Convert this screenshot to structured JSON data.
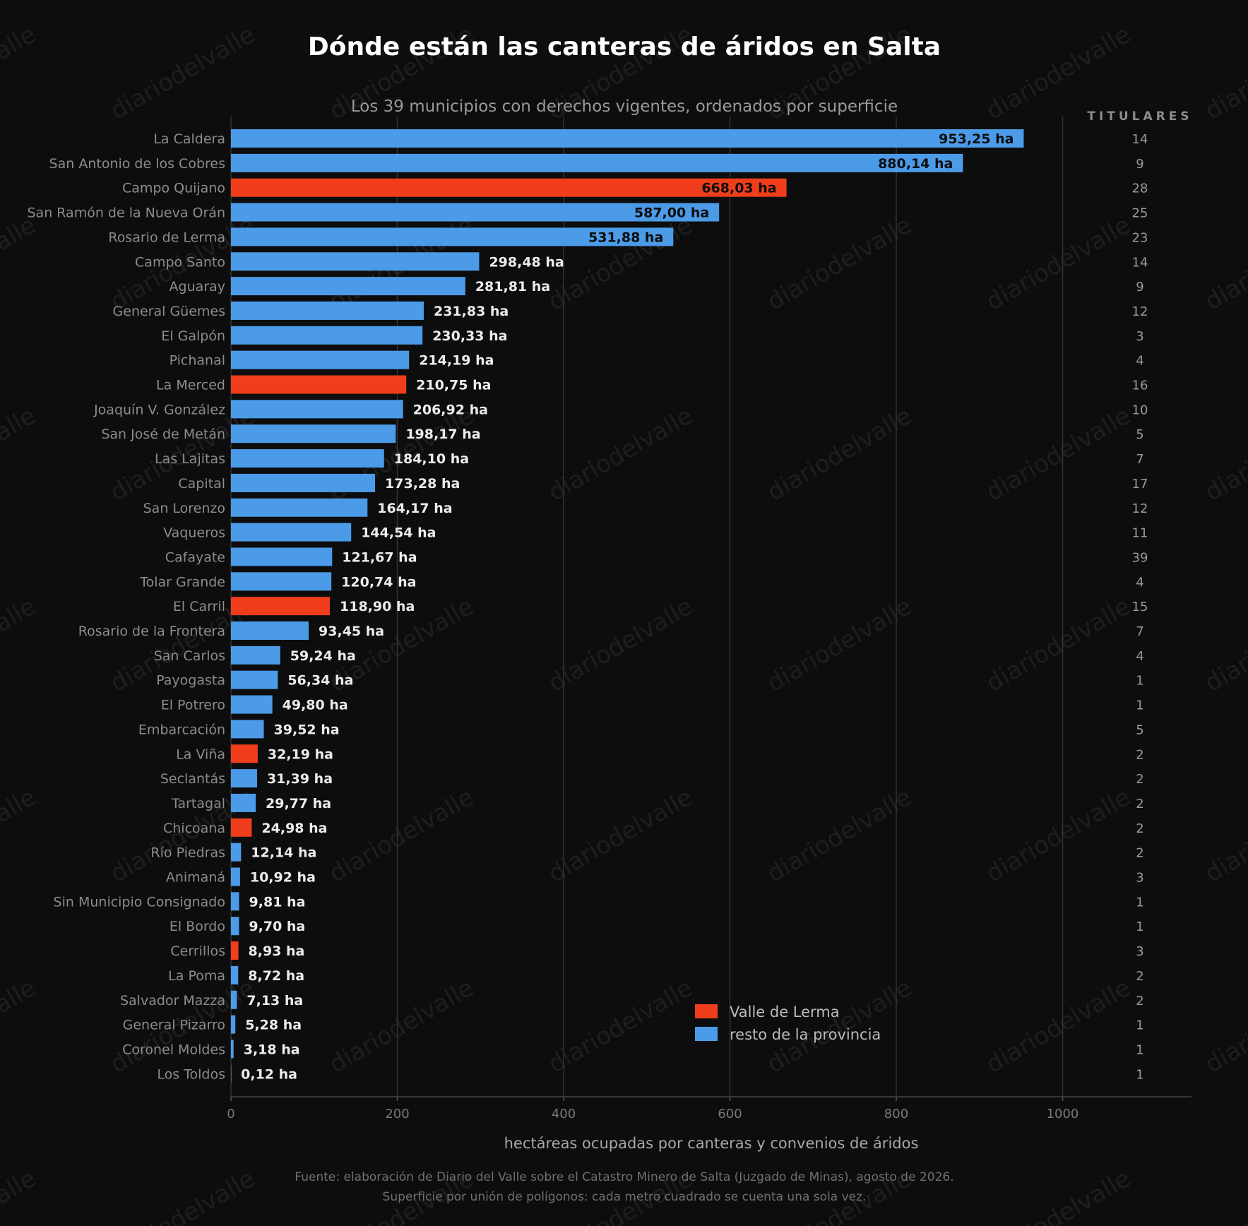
{
  "chart_data": {
    "type": "bar",
    "orientation": "horizontal",
    "title": "Dónde están las canteras de áridos en Salta",
    "subtitle": "Los 39 municipios con derechos vigentes, ordenados por superficie",
    "xlabel": "hectáreas ocupadas por canteras y convenios de áridos",
    "xlim": [
      0,
      1155
    ],
    "xticks": [
      0,
      200,
      400,
      600,
      800,
      1000
    ],
    "grid": true,
    "value_suffix": " ha",
    "right_column_header": "TITULARES",
    "legend": {
      "position": "bottom-right",
      "entries": [
        {
          "label": "Valle de Lerma",
          "color": "#f03e1c"
        },
        {
          "label": "resto de la provincia",
          "color": "#4c9be8"
        }
      ]
    },
    "categories": [
      "La Caldera",
      "San Antonio de los Cobres",
      "Campo Quijano",
      "San Ramón de la Nueva Orán",
      "Rosario de Lerma",
      "Campo Santo",
      "Aguaray",
      "General Güemes",
      "El Galpón",
      "Pichanal",
      "La Merced",
      "Joaquín V. González",
      "San José de Metán",
      "Las Lajitas",
      "Capital",
      "San Lorenzo",
      "Vaqueros",
      "Cafayate",
      "Tolar Grande",
      "El Carril",
      "Rosario de la Frontera",
      "San Carlos",
      "Payogasta",
      "El Potrero",
      "Embarcación",
      "La Viña",
      "Seclantás",
      "Tartagal",
      "Chicoana",
      "Río Piedras",
      "Animaná",
      "Sin Municipio Consignado",
      "El Bordo",
      "Cerrillos",
      "La Poma",
      "Salvador Mazza",
      "General Pizarro",
      "Coronel Moldes",
      "Los Toldos"
    ],
    "values": [
      953.25,
      880.14,
      668.03,
      587.0,
      531.88,
      298.48,
      281.81,
      231.83,
      230.33,
      214.19,
      210.75,
      206.92,
      198.17,
      184.1,
      173.28,
      164.17,
      144.54,
      121.67,
      120.74,
      118.9,
      93.45,
      59.24,
      56.34,
      49.8,
      39.52,
      32.19,
      31.39,
      29.77,
      24.98,
      12.14,
      10.92,
      9.81,
      9.7,
      8.93,
      8.72,
      7.13,
      5.28,
      3.18,
      0.12
    ],
    "value_labels": [
      "953,25",
      "880,14",
      "668,03",
      "587,00",
      "531,88",
      "298,48",
      "281,81",
      "231,83",
      "230,33",
      "214,19",
      "210,75",
      "206,92",
      "198,17",
      "184,10",
      "173,28",
      "164,17",
      "144,54",
      "121,67",
      "120,74",
      "118,90",
      "93,45",
      "59,24",
      "56,34",
      "49,80",
      "39,52",
      "32,19",
      "31,39",
      "29,77",
      "24,98",
      "12,14",
      "10,92",
      "9,81",
      "9,70",
      "8,93",
      "8,72",
      "7,13",
      "5,28",
      "3,18",
      "0,12"
    ],
    "group": [
      "resto",
      "resto",
      "valle",
      "resto",
      "resto",
      "resto",
      "resto",
      "resto",
      "resto",
      "resto",
      "valle",
      "resto",
      "resto",
      "resto",
      "resto",
      "resto",
      "resto",
      "resto",
      "resto",
      "valle",
      "resto",
      "resto",
      "resto",
      "resto",
      "resto",
      "valle",
      "resto",
      "resto",
      "valle",
      "resto",
      "resto",
      "resto",
      "resto",
      "valle",
      "resto",
      "resto",
      "resto",
      "resto",
      "resto"
    ],
    "titulares": [
      14,
      9,
      28,
      25,
      23,
      14,
      9,
      12,
      3,
      4,
      16,
      10,
      5,
      7,
      17,
      12,
      11,
      39,
      4,
      15,
      7,
      4,
      1,
      1,
      5,
      2,
      2,
      2,
      2,
      2,
      3,
      1,
      1,
      3,
      2,
      2,
      1,
      1,
      1
    ],
    "source_lines": [
      "Fuente: elaboración de Diario del Valle sobre el Catastro Minero de Salta (Juzgado de Minas), agosto de 2026.",
      "Superficie por unión de polígonos: cada metro cuadrado se cuenta una sola vez."
    ],
    "watermark": "diariodelvalle"
  },
  "colors": {
    "background": "#0d0d0d",
    "valle": "#f03e1c",
    "resto": "#4c9be8",
    "grid": "#333333",
    "category_text": "#8c8c8c",
    "title_text": "#ffffff",
    "muted_text": "#9a9a9a"
  }
}
